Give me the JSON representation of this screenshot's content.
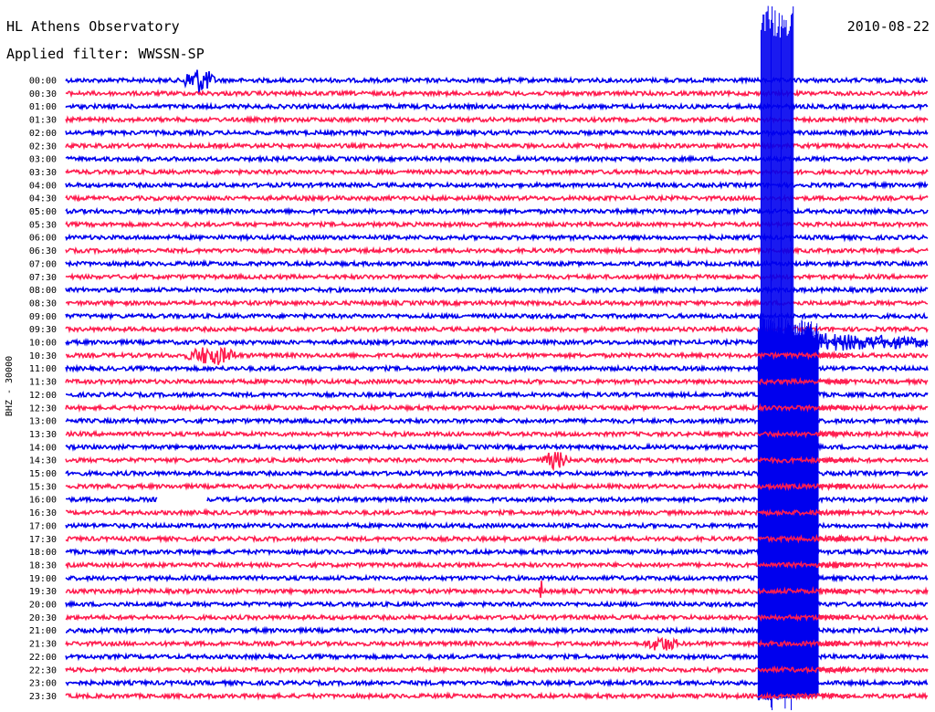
{
  "header": {
    "title": "HL Athens Observatory",
    "filter": "Applied filter: WWSSN-SP",
    "date": "2010-08-22"
  },
  "colors": {
    "trace_even": "#0000ee",
    "trace_odd": "#ff1e50"
  },
  "chart_data": {
    "type": "line",
    "title": "HL Athens Observatory",
    "subtitle": "Applied filter: WWSSN-SP",
    "date": "2010-08-22",
    "channel_label": "BHZ - 30000",
    "rows": [
      "00:00",
      "00:30",
      "01:00",
      "01:30",
      "02:00",
      "02:30",
      "03:00",
      "03:30",
      "04:00",
      "04:30",
      "05:00",
      "05:30",
      "06:00",
      "06:30",
      "07:00",
      "07:30",
      "08:00",
      "08:30",
      "09:00",
      "09:30",
      "10:00",
      "10:30",
      "11:00",
      "11:30",
      "12:00",
      "12:30",
      "13:00",
      "13:30",
      "14:00",
      "14:30",
      "15:00",
      "15:30",
      "16:00",
      "16:30",
      "17:00",
      "17:30",
      "18:00",
      "18:30",
      "19:00",
      "19:30",
      "20:00",
      "20:30",
      "21:00",
      "21:30",
      "22:00",
      "22:30",
      "23:00",
      "23:30"
    ],
    "row_duration_minutes": 30,
    "grid": false,
    "events": [
      {
        "row": "00:00",
        "start_min": 4.0,
        "end_min": 5.5,
        "amplitude": 0.9,
        "kind": "local"
      },
      {
        "row": "10:30",
        "start_min": 4.1,
        "end_min": 6.5,
        "amplitude": 0.6,
        "kind": "local"
      },
      {
        "row": "14:30",
        "start_min": 16.5,
        "end_min": 17.8,
        "amplitude": 0.55,
        "kind": "local"
      },
      {
        "row": "19:30",
        "start_min": 16.4,
        "end_min": 16.6,
        "amplitude": 0.7,
        "kind": "spike"
      },
      {
        "row": "21:30",
        "start_min": 20.1,
        "end_min": 21.7,
        "amplitude": 0.45,
        "kind": "local"
      },
      {
        "row": "00:00",
        "start_min": 24.2,
        "end_min": 30.0,
        "amplitude": 12,
        "kind": "teleseism_onset"
      }
    ],
    "gaps": [
      {
        "row": "16:00",
        "start_min": 3.2,
        "end_min": 4.9
      }
    ],
    "coda": {
      "rows_from": "10:00",
      "rows_to": "23:30",
      "start_min": 24.1,
      "end_min": 26.2
    },
    "tail_row": {
      "row": "10:00",
      "start_min": 26.2,
      "end_min": 30.0,
      "amplitude": 0.6
    }
  }
}
